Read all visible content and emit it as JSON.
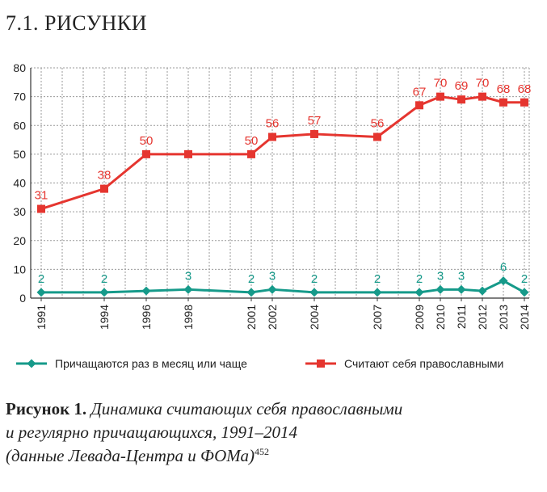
{
  "heading": "7.1. РИСУНКИ",
  "colors": {
    "red": "#e5352f",
    "teal": "#169a8a",
    "grid": "#9a9a9a",
    "axis": "#333333"
  },
  "chart_data": {
    "type": "line",
    "x": [
      "1991",
      "1994",
      "1996",
      "1998",
      "2001",
      "2002",
      "2004",
      "2007",
      "2009",
      "2010",
      "2011",
      "2012",
      "2013",
      "2014"
    ],
    "ylim": [
      0,
      80
    ],
    "yticks": [
      "0",
      "10",
      "20",
      "30",
      "40",
      "50",
      "60",
      "70",
      "80"
    ],
    "grid": true,
    "legend_position": "bottom",
    "series": [
      {
        "name": "Причащаются раз в месяц или чаще",
        "marker": "diamond",
        "color": "#169a8a",
        "values": [
          2,
          2,
          2.5,
          3,
          2,
          3,
          2,
          2,
          2,
          3,
          3,
          2.5,
          6,
          2
        ],
        "labels": [
          "2",
          "2",
          "",
          "3",
          "2",
          "3",
          "2",
          "2",
          "2",
          "3",
          "3",
          "",
          "6",
          "2"
        ]
      },
      {
        "name": "Считают себя православными",
        "marker": "square",
        "color": "#e5352f",
        "values": [
          31,
          38,
          50,
          50,
          50,
          56,
          57,
          56,
          67,
          70,
          69,
          70,
          68,
          68
        ],
        "labels": [
          "31",
          "38",
          "50",
          "",
          "50",
          "56",
          "57",
          "56",
          "67",
          "70",
          "69",
          "70",
          "68",
          "68"
        ]
      }
    ]
  },
  "caption": {
    "label": "Рисунок 1.",
    "line1": "Динамика считающих себя православными",
    "line2": "и регулярно причащающихся, 1991–2014",
    "line3": "(данные Левада-Центра и ФОМа)",
    "footnote": "452"
  }
}
